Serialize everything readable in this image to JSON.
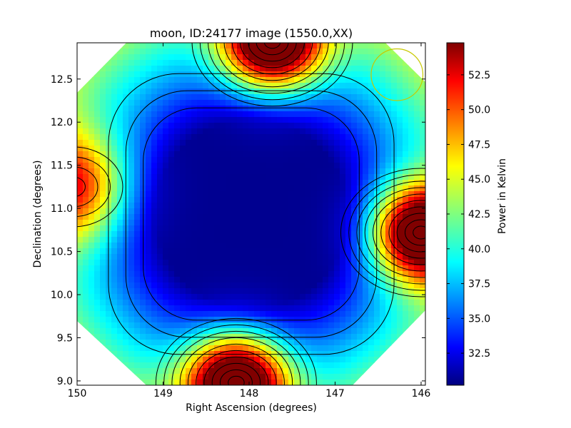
{
  "chart_data": {
    "type": "heatmap",
    "title": "moon, ID:24177 image (1550.0,XX)",
    "xlabel": "Right Ascension (degrees)",
    "ylabel": "Declination (degrees)",
    "colorbar_label": "Power in Kelvin",
    "xlim": [
      150.0,
      145.95
    ],
    "ylim": [
      8.95,
      12.92
    ],
    "x_ticks": [
      150,
      149,
      148,
      147,
      146
    ],
    "x_tick_labels": [
      "150",
      "149",
      "148",
      "147",
      "146"
    ],
    "y_ticks": [
      9.0,
      9.5,
      10.0,
      10.5,
      11.0,
      11.5,
      12.0,
      12.5
    ],
    "y_tick_labels": [
      "9.0",
      "9.5",
      "10.0",
      "10.5",
      "11.0",
      "11.5",
      "12.0",
      "12.5"
    ],
    "colorbar_range": [
      30.2,
      54.8
    ],
    "colorbar_ticks": [
      32.5,
      35.0,
      37.5,
      40.0,
      42.5,
      45.0,
      47.5,
      50.0,
      52.5
    ],
    "colorbar_tick_labels": [
      "32.5",
      "35.0",
      "37.5",
      "40.0",
      "42.5",
      "45.0",
      "47.5",
      "50.0",
      "52.5"
    ],
    "colormap": "jet",
    "contour_color": "#000000",
    "background_level_K": 30.6,
    "hotspots": [
      {
        "ra": 148.15,
        "dec": 8.98,
        "peak_K": 54.5
      },
      {
        "ra": 146.0,
        "dec": 10.72,
        "peak_K": 54.0
      },
      {
        "ra": 147.73,
        "dec": 12.93,
        "peak_K": 54.3
      },
      {
        "ra": 150.05,
        "dec": 11.25,
        "peak_K": 44.0
      }
    ],
    "beam_marker": {
      "ra": 146.28,
      "dec": 12.55,
      "radius_deg": 0.3,
      "color": "#c8c800"
    },
    "grid": false
  }
}
